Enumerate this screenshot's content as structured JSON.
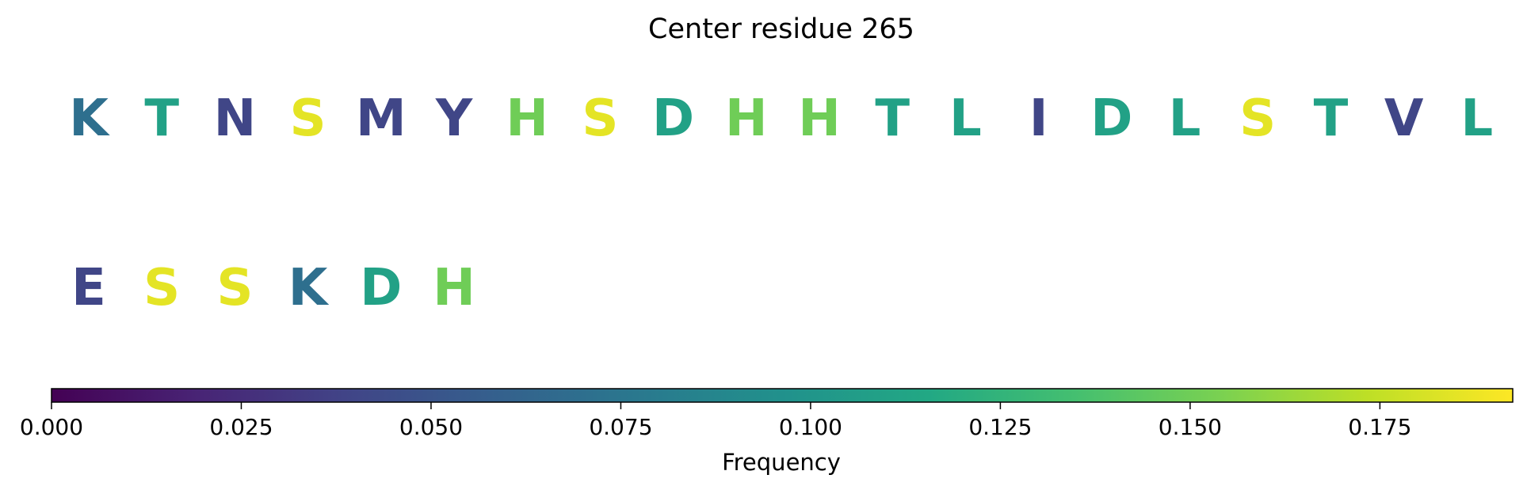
{
  "chart_data": {
    "type": "other",
    "title": "Center residue 265",
    "residues": [
      {
        "letter": "K",
        "frequency": 0.07
      },
      {
        "letter": "T",
        "frequency": 0.11
      },
      {
        "letter": "N",
        "frequency": 0.04
      },
      {
        "letter": "S",
        "frequency": 0.185
      },
      {
        "letter": "M",
        "frequency": 0.04
      },
      {
        "letter": "Y",
        "frequency": 0.04
      },
      {
        "letter": "H",
        "frequency": 0.15
      },
      {
        "letter": "S",
        "frequency": 0.185
      },
      {
        "letter": "D",
        "frequency": 0.11
      },
      {
        "letter": "H",
        "frequency": 0.15
      },
      {
        "letter": "H",
        "frequency": 0.15
      },
      {
        "letter": "T",
        "frequency": 0.11
      },
      {
        "letter": "L",
        "frequency": 0.11
      },
      {
        "letter": "I",
        "frequency": 0.04
      },
      {
        "letter": "D",
        "frequency": 0.11
      },
      {
        "letter": "L",
        "frequency": 0.11
      },
      {
        "letter": "S",
        "frequency": 0.185
      },
      {
        "letter": "T",
        "frequency": 0.11
      },
      {
        "letter": "V",
        "frequency": 0.04
      },
      {
        "letter": "L",
        "frequency": 0.11
      },
      {
        "letter": "E",
        "frequency": 0.04
      },
      {
        "letter": "S",
        "frequency": 0.185
      },
      {
        "letter": "S",
        "frequency": 0.185
      },
      {
        "letter": "K",
        "frequency": 0.07
      },
      {
        "letter": "D",
        "frequency": 0.11
      },
      {
        "letter": "H",
        "frequency": 0.15
      }
    ],
    "colorbar": {
      "colormap": "viridis",
      "label": "Frequency",
      "range": [
        0,
        0.1925
      ],
      "ticks": [
        0.0,
        0.025,
        0.05,
        0.075,
        0.1,
        0.125,
        0.15,
        0.175
      ],
      "tick_labels": [
        "0.000",
        "0.025",
        "0.050",
        "0.075",
        "0.100",
        "0.125",
        "0.150",
        "0.175"
      ]
    }
  }
}
